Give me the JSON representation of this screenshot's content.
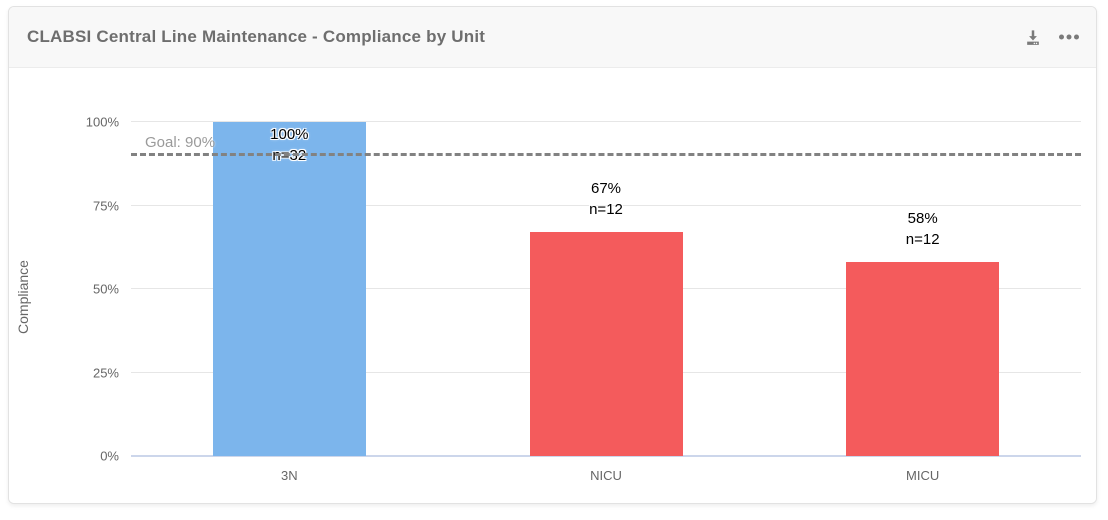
{
  "header": {
    "title": "CLABSI Central Line Maintenance - Compliance by Unit",
    "download_icon": "download-icon",
    "more_icon": "more-options-icon"
  },
  "chart_data": {
    "type": "bar",
    "title": "CLABSI Central Line Maintenance - Compliance by Unit",
    "categories": [
      "3N",
      "NICU",
      "MICU"
    ],
    "series": [
      {
        "name": "Compliance",
        "values": [
          100,
          67,
          58
        ],
        "n": [
          32,
          12,
          12
        ]
      }
    ],
    "bar_labels": [
      [
        "100%",
        "n=32"
      ],
      [
        "67%",
        "n=12"
      ],
      [
        "58%",
        "n=12"
      ]
    ],
    "bar_colors": [
      "#7cb5ec",
      "#f45b5c",
      "#f45b5c"
    ],
    "xlabel": "",
    "ylabel": "Compliance",
    "yticks": [
      "0%",
      "25%",
      "50%",
      "75%",
      "100%"
    ],
    "ylim": [
      0,
      100
    ],
    "goal": {
      "value": 90,
      "label": "Goal: 90%"
    },
    "grid": true,
    "legend": false,
    "colors": {
      "bar_blue": "#7cb5ec",
      "bar_red": "#f45b5c",
      "baseline": "#ccd6eb",
      "gridline": "#e6e6e6",
      "goal_line": "#828282",
      "header_bg": "#f8f8f8",
      "title_text": "#6e6e6e",
      "axis_text": "#666666"
    }
  }
}
